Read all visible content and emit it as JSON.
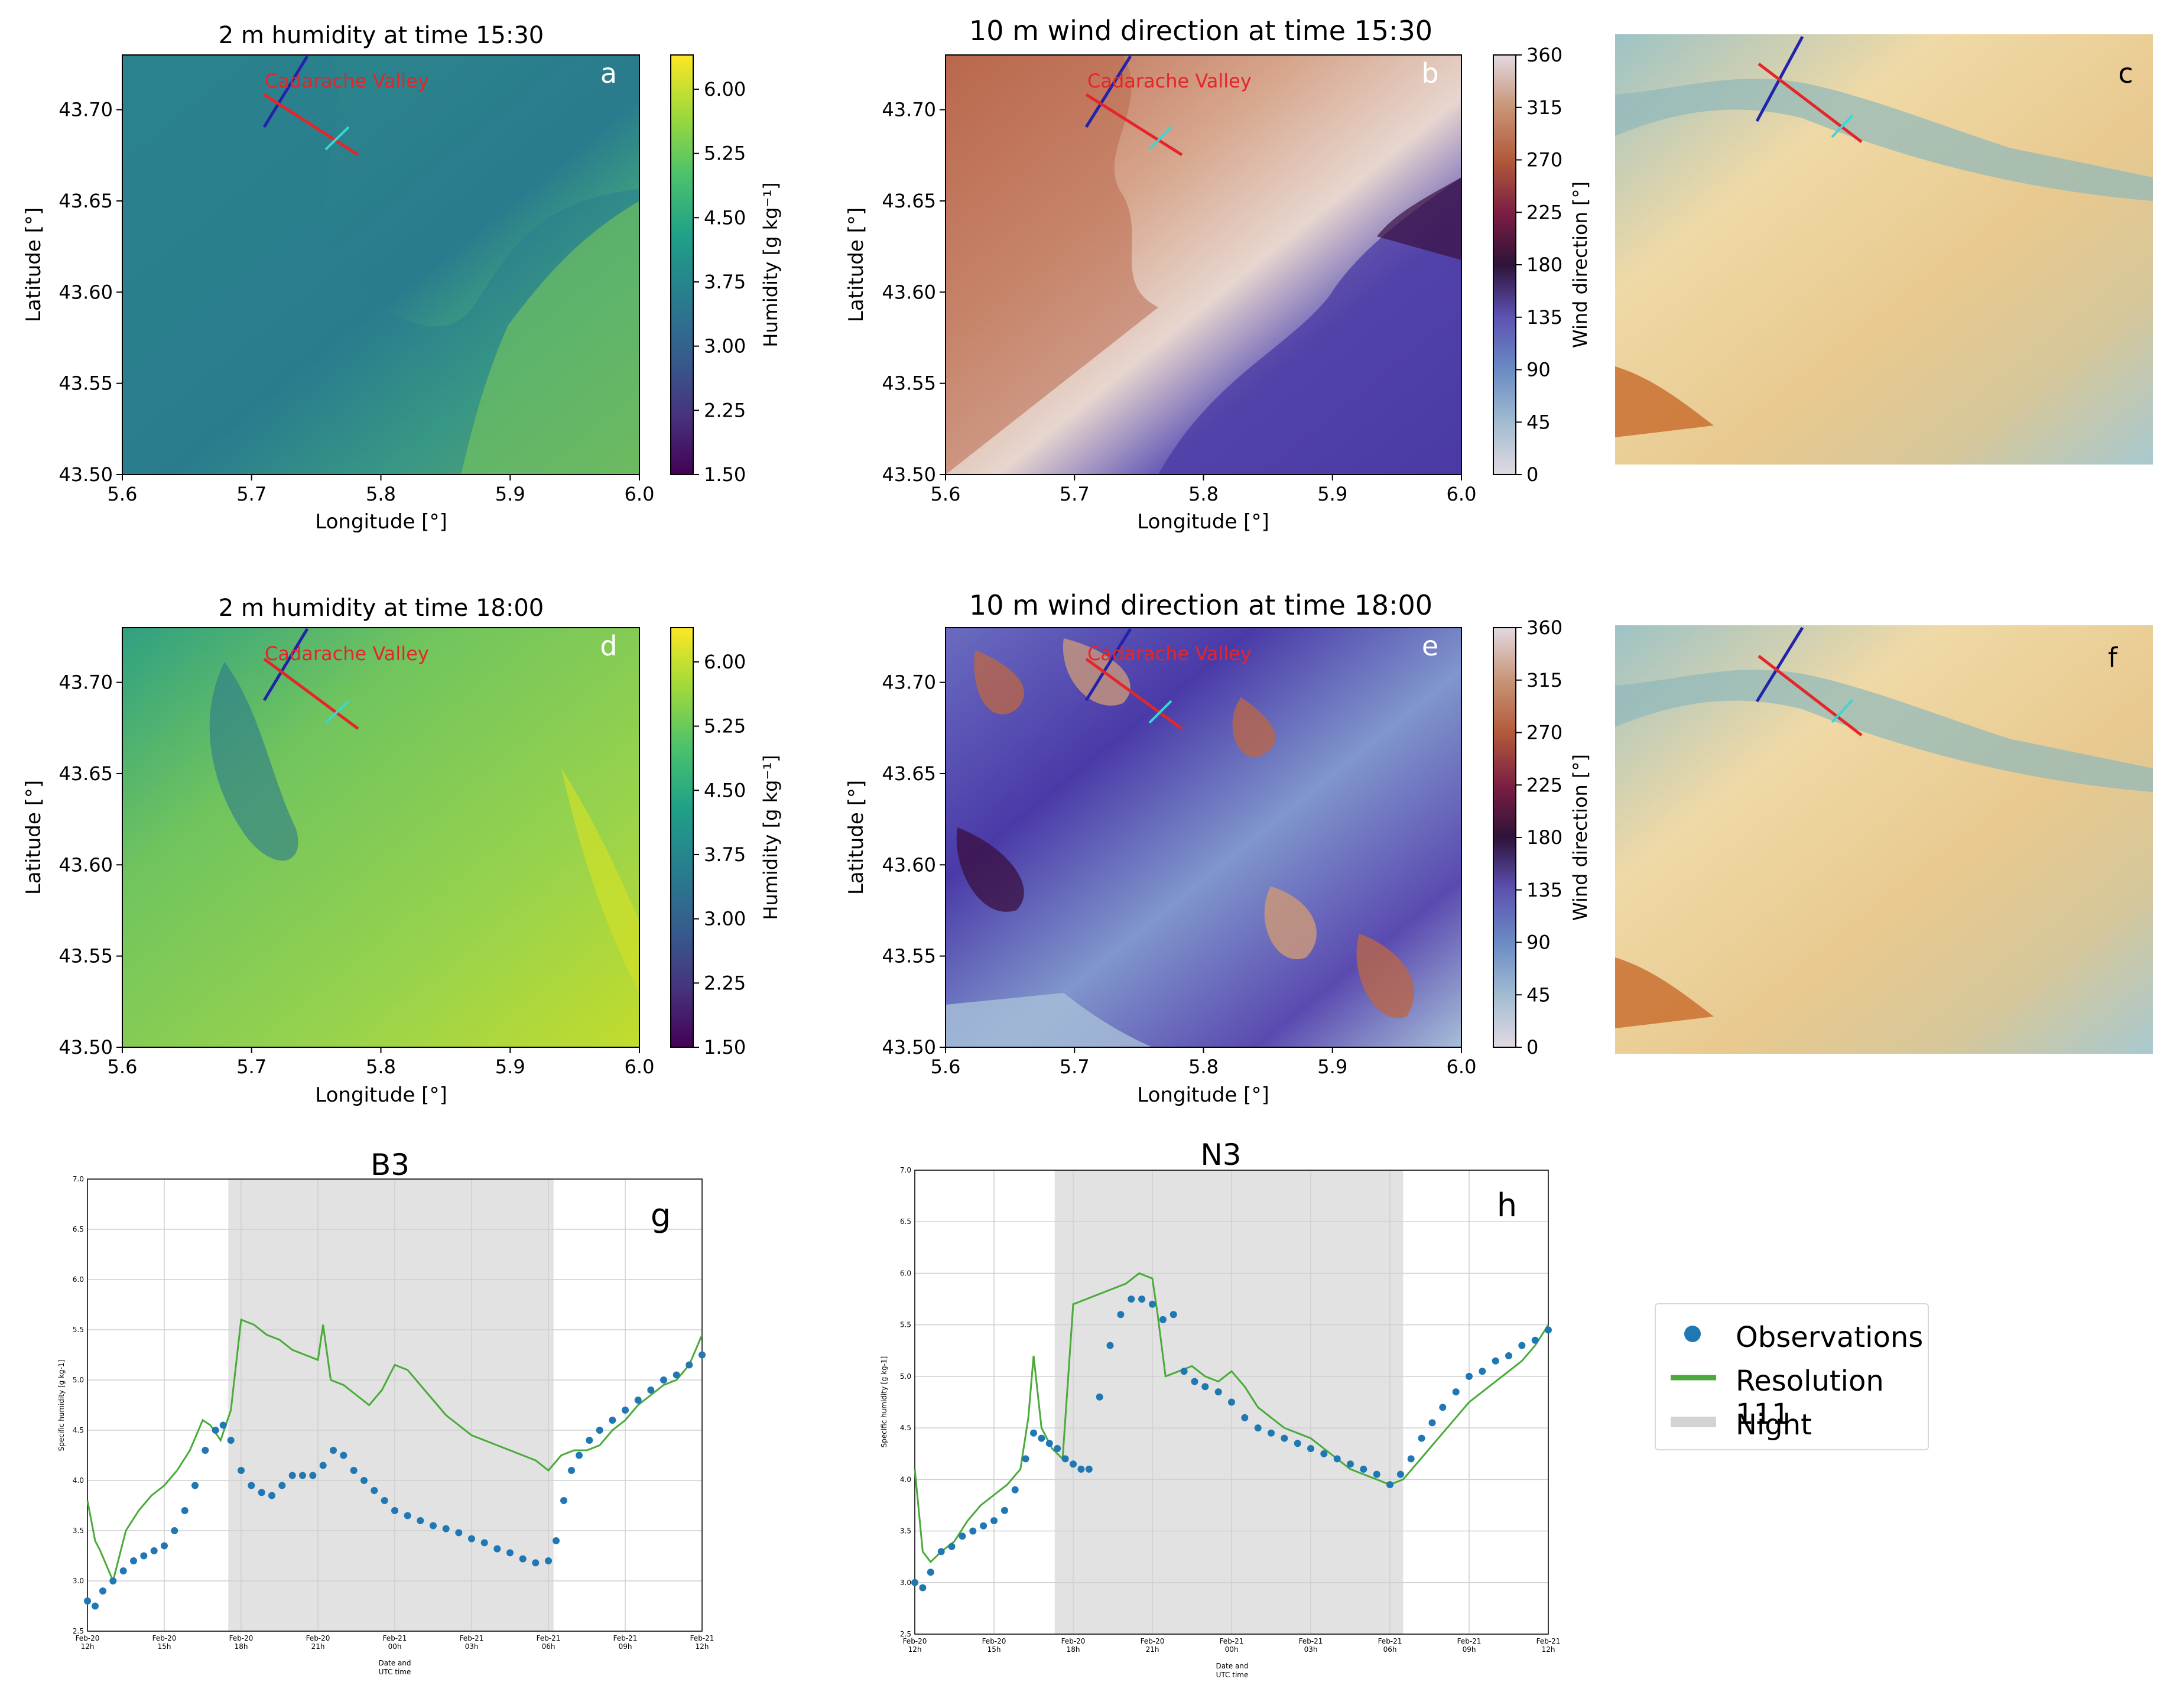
{
  "chart_data": [
    {
      "panel": "a",
      "type": "heatmap",
      "title": "2 m humidity  at time 15:30",
      "xlabel": "Longitude [°]",
      "ylabel": "Latitude [°]",
      "xlim": [
        5.6,
        6.0
      ],
      "ylim": [
        43.5,
        43.73
      ],
      "xticks": [
        "5.6",
        "5.7",
        "5.8",
        "5.9",
        "6.0"
      ],
      "yticks": [
        "43.50",
        "43.55",
        "43.60",
        "43.65",
        "43.70"
      ],
      "colorbar": {
        "label": "Humidity [g kg⁻¹]",
        "ticks": [
          "1.50",
          "2.25",
          "3.00",
          "3.75",
          "4.50",
          "5.25",
          "6.00"
        ],
        "colormap": "viridis"
      },
      "annotation": "Cadarache Valley",
      "panel_letter": "a"
    },
    {
      "panel": "b",
      "type": "heatmap",
      "title": "10 m wind direction  at time 15:30",
      "xlabel": "Longitude [°]",
      "ylabel": "Latitude [°]",
      "xlim": [
        5.6,
        6.0
      ],
      "ylim": [
        43.5,
        43.73
      ],
      "xticks": [
        "5.6",
        "5.7",
        "5.8",
        "5.9",
        "6.0"
      ],
      "yticks": [
        "43.50",
        "43.55",
        "43.60",
        "43.65",
        "43.70"
      ],
      "colorbar": {
        "label": "Wind direction [°]",
        "ticks": [
          "0",
          "45",
          "90",
          "135",
          "180",
          "225",
          "270",
          "315",
          "360"
        ],
        "colormap": "twilight"
      },
      "annotation": "Cadarache Valley",
      "panel_letter": "b"
    },
    {
      "panel": "c",
      "type": "map",
      "panel_letter": "c"
    },
    {
      "panel": "d",
      "type": "heatmap",
      "title": "2 m humidity  at time 18:00",
      "xlabel": "Longitude [°]",
      "ylabel": "Latitude [°]",
      "xlim": [
        5.6,
        6.0
      ],
      "ylim": [
        43.5,
        43.73
      ],
      "xticks": [
        "5.6",
        "5.7",
        "5.8",
        "5.9",
        "6.0"
      ],
      "yticks": [
        "43.50",
        "43.55",
        "43.60",
        "43.65",
        "43.70"
      ],
      "colorbar": {
        "label": "Humidity [g kg⁻¹]",
        "ticks": [
          "1.50",
          "2.25",
          "3.00",
          "3.75",
          "4.50",
          "5.25",
          "6.00"
        ],
        "colormap": "viridis"
      },
      "annotation": "Cadarache Valley",
      "panel_letter": "d"
    },
    {
      "panel": "e",
      "type": "heatmap",
      "title": "10 m wind direction  at time 18:00",
      "xlabel": "Longitude [°]",
      "ylabel": "Latitude [°]",
      "xlim": [
        5.6,
        6.0
      ],
      "ylim": [
        43.5,
        43.73
      ],
      "xticks": [
        "5.6",
        "5.7",
        "5.8",
        "5.9",
        "6.0"
      ],
      "yticks": [
        "43.50",
        "43.55",
        "43.60",
        "43.65",
        "43.70"
      ],
      "colorbar": {
        "label": "Wind direction [°]",
        "ticks": [
          "0",
          "45",
          "90",
          "135",
          "180",
          "225",
          "270",
          "315",
          "360"
        ],
        "colormap": "twilight"
      },
      "annotation": "Cadarache Valley",
      "panel_letter": "e"
    },
    {
      "panel": "f",
      "type": "map",
      "panel_letter": "f"
    },
    {
      "panel": "g",
      "type": "line",
      "title": "B3",
      "panel_letter": "g",
      "xlabel": "Date and\nUTC time",
      "ylabel": "Specific humidity [g kg-1]",
      "xlim": [
        0,
        24
      ],
      "ylim": [
        2.5,
        7.0
      ],
      "yticks": [
        "2.5",
        "3.0",
        "3.5",
        "4.0",
        "4.5",
        "5.0",
        "5.5",
        "6.0",
        "6.5",
        "7.0"
      ],
      "xticks": [
        [
          "Feb-20",
          "12h"
        ],
        [
          "Feb-20",
          "15h"
        ],
        [
          "Feb-20",
          "18h"
        ],
        [
          "Feb-20",
          "21h"
        ],
        [
          "Feb-21",
          "00h"
        ],
        [
          "Feb-21",
          "03h"
        ],
        [
          "Feb-21",
          "06h"
        ],
        [
          "Feb-21",
          "09h"
        ],
        [
          "Feb-21",
          "12h"
        ]
      ],
      "night": [
        5.5,
        18.2
      ],
      "series": [
        {
          "name": "Resolution 111",
          "type": "line",
          "color": "#4aaa3a",
          "x": [
            0,
            0.3,
            0.5,
            1,
            1.5,
            2,
            2.5,
            3,
            3.5,
            4,
            4.5,
            4.8,
            5.2,
            5.6,
            6,
            6.5,
            7,
            7.5,
            8,
            8.5,
            9,
            9.2,
            9.5,
            10,
            10.5,
            11,
            11.5,
            12,
            12.5,
            13,
            13.5,
            14,
            14.5,
            15,
            15.5,
            16,
            16.5,
            17,
            17.5,
            18,
            18.5,
            19,
            19.5,
            20,
            20.5,
            21,
            21.5,
            22,
            22.5,
            23,
            23.5,
            24
          ],
          "y": [
            3.8,
            3.4,
            3.3,
            3.0,
            3.5,
            3.7,
            3.85,
            3.95,
            4.1,
            4.3,
            4.6,
            4.55,
            4.4,
            4.7,
            5.6,
            5.55,
            5.45,
            5.4,
            5.3,
            5.25,
            5.2,
            5.55,
            5.0,
            4.95,
            4.85,
            4.75,
            4.9,
            5.15,
            5.1,
            4.95,
            4.8,
            4.65,
            4.55,
            4.45,
            4.4,
            4.35,
            4.3,
            4.25,
            4.2,
            4.1,
            4.25,
            4.3,
            4.3,
            4.35,
            4.5,
            4.6,
            4.75,
            4.85,
            4.95,
            5.0,
            5.15,
            5.45
          ]
        },
        {
          "name": "Observations",
          "type": "scatter",
          "color": "#1f77b4",
          "x": [
            0,
            0.3,
            0.6,
            1,
            1.4,
            1.8,
            2.2,
            2.6,
            3,
            3.4,
            3.8,
            4.2,
            4.6,
            5,
            5.3,
            5.6,
            6,
            6.4,
            6.8,
            7.2,
            7.6,
            8,
            8.4,
            8.8,
            9.2,
            9.6,
            10,
            10.4,
            10.8,
            11.2,
            11.6,
            12,
            12.5,
            13,
            13.5,
            14,
            14.5,
            15,
            15.5,
            16,
            16.5,
            17,
            17.5,
            18,
            18.3,
            18.6,
            18.9,
            19.2,
            19.6,
            20,
            20.5,
            21,
            21.5,
            22,
            22.5,
            23,
            23.5,
            24
          ],
          "y": [
            2.8,
            2.75,
            2.9,
            3.0,
            3.1,
            3.2,
            3.25,
            3.3,
            3.35,
            3.5,
            3.7,
            3.95,
            4.3,
            4.5,
            4.55,
            4.4,
            4.1,
            3.95,
            3.88,
            3.85,
            3.95,
            4.05,
            4.05,
            4.05,
            4.15,
            4.3,
            4.25,
            4.1,
            4.0,
            3.9,
            3.8,
            3.7,
            3.65,
            3.6,
            3.55,
            3.52,
            3.48,
            3.42,
            3.38,
            3.32,
            3.28,
            3.22,
            3.18,
            3.2,
            3.4,
            3.8,
            4.1,
            4.25,
            4.4,
            4.5,
            4.6,
            4.7,
            4.8,
            4.9,
            5.0,
            5.05,
            5.15,
            5.25
          ]
        }
      ]
    },
    {
      "panel": "h",
      "type": "line",
      "title": "N3",
      "panel_letter": "h",
      "xlabel": "Date and\nUTC time",
      "ylabel": "Specific humidity [g kg-1]",
      "xlim": [
        0,
        24
      ],
      "ylim": [
        2.5,
        7.0
      ],
      "yticks": [
        "2.5",
        "3.0",
        "3.5",
        "4.0",
        "4.5",
        "5.0",
        "5.5",
        "6.0",
        "6.5",
        "7.0"
      ],
      "xticks": [
        [
          "Feb-20",
          "12h"
        ],
        [
          "Feb-20",
          "15h"
        ],
        [
          "Feb-20",
          "18h"
        ],
        [
          "Feb-20",
          "21h"
        ],
        [
          "Feb-21",
          "00h"
        ],
        [
          "Feb-21",
          "03h"
        ],
        [
          "Feb-21",
          "06h"
        ],
        [
          "Feb-21",
          "09h"
        ],
        [
          "Feb-21",
          "12h"
        ]
      ],
      "night": [
        5.3,
        18.5
      ],
      "series": [
        {
          "name": "Resolution 111",
          "type": "line",
          "color": "#4aaa3a",
          "x": [
            0,
            0.3,
            0.6,
            1,
            1.5,
            2,
            2.5,
            3,
            3.5,
            4,
            4.3,
            4.5,
            4.8,
            5.2,
            5.6,
            6,
            6.5,
            7,
            7.5,
            8,
            8.5,
            9,
            9.2,
            9.5,
            10,
            10.5,
            11,
            11.5,
            12,
            12.5,
            13,
            13.5,
            14,
            14.5,
            15,
            15.5,
            16,
            16.5,
            17,
            17.5,
            18,
            18.5,
            19,
            19.5,
            20,
            20.5,
            21,
            21.5,
            22,
            22.5,
            23,
            23.5,
            24
          ],
          "y": [
            4.1,
            3.3,
            3.2,
            3.3,
            3.4,
            3.6,
            3.75,
            3.85,
            3.95,
            4.1,
            4.6,
            5.2,
            4.5,
            4.3,
            4.2,
            5.7,
            5.75,
            5.8,
            5.85,
            5.9,
            6.0,
            5.95,
            5.6,
            5.0,
            5.05,
            5.1,
            5.0,
            4.95,
            5.05,
            4.9,
            4.7,
            4.6,
            4.5,
            4.45,
            4.4,
            4.3,
            4.2,
            4.1,
            4.05,
            4.0,
            3.95,
            4.0,
            4.15,
            4.3,
            4.45,
            4.6,
            4.75,
            4.85,
            4.95,
            5.05,
            5.15,
            5.3,
            5.5
          ]
        },
        {
          "name": "Observations",
          "type": "scatter",
          "color": "#1f77b4",
          "x": [
            0,
            0.3,
            0.6,
            1,
            1.4,
            1.8,
            2.2,
            2.6,
            3,
            3.4,
            3.8,
            4.2,
            4.5,
            4.8,
            5.1,
            5.4,
            5.7,
            6.0,
            6.3,
            6.6,
            7.0,
            7.4,
            7.8,
            8.2,
            8.6,
            9.0,
            9.4,
            9.8,
            10.2,
            10.6,
            11.0,
            11.5,
            12,
            12.5,
            13,
            13.5,
            14,
            14.5,
            15,
            15.5,
            16,
            16.5,
            17,
            17.5,
            18,
            18.4,
            18.8,
            19.2,
            19.6,
            20,
            20.5,
            21,
            21.5,
            22,
            22.5,
            23,
            23.5,
            24
          ],
          "y": [
            3.0,
            2.95,
            3.1,
            3.3,
            3.35,
            3.45,
            3.5,
            3.55,
            3.6,
            3.7,
            3.9,
            4.2,
            4.45,
            4.4,
            4.35,
            4.3,
            4.2,
            4.15,
            4.1,
            4.1,
            4.8,
            5.3,
            5.6,
            5.75,
            5.75,
            5.7,
            5.55,
            5.6,
            5.05,
            4.95,
            4.9,
            4.85,
            4.75,
            4.6,
            4.5,
            4.45,
            4.4,
            4.35,
            4.3,
            4.25,
            4.2,
            4.15,
            4.1,
            4.05,
            3.95,
            4.05,
            4.2,
            4.4,
            4.55,
            4.7,
            4.85,
            5.0,
            5.05,
            5.15,
            5.2,
            5.3,
            5.35,
            5.45
          ]
        }
      ]
    }
  ],
  "legend": {
    "items": [
      {
        "label": "Observations",
        "kind": "marker",
        "color": "#1f77b4"
      },
      {
        "label": "Resolution 111",
        "kind": "line",
        "color": "#4aaa3a"
      },
      {
        "label": "Night",
        "kind": "patch",
        "color": "#d3d3d3"
      }
    ]
  },
  "colors": {
    "cross_section_red": "#e4252a",
    "cross_section_blue": "#2222aa",
    "cross_section_cyan": "#3ad7d7",
    "annotation_red": "#e4252a"
  }
}
